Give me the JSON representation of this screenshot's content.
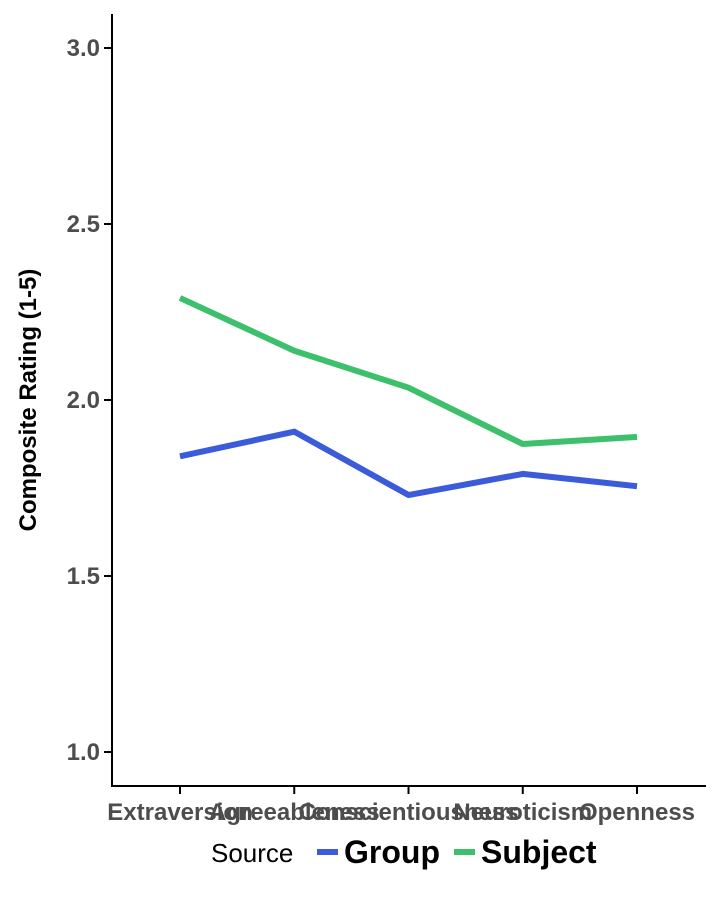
{
  "chart_data": {
    "type": "line",
    "categories": [
      "Extraversion",
      "Agreeableness",
      "Conscientiousness",
      "Neuroticism",
      "Openness"
    ],
    "series": [
      {
        "name": "Group",
        "values": [
          1.84,
          1.91,
          1.73,
          1.79,
          1.755
        ],
        "color": "#3b5bdb"
      },
      {
        "name": "Subject",
        "values": [
          2.29,
          2.14,
          2.035,
          1.875,
          1.895
        ],
        "color": "#3cc06c"
      }
    ],
    "title": "",
    "xlabel": "",
    "ylabel": "Composite Rating (1-5)",
    "ylim": [
      1.0,
      3.0
    ],
    "yticks": [
      "1.0",
      "1.5",
      "2.0",
      "2.5",
      "3.0"
    ],
    "grid": false,
    "legend": {
      "title": "Source",
      "position": "bottom"
    }
  }
}
